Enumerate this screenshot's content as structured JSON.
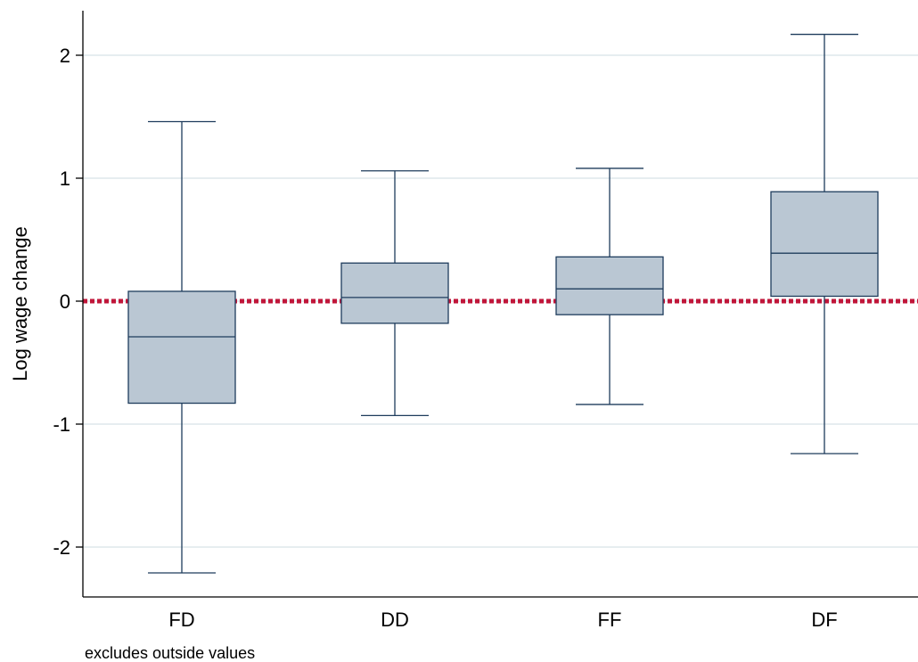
{
  "chart_data": {
    "type": "box",
    "ylabel": "Log wage change",
    "note": "excludes outside values",
    "ylim": [
      -2.4,
      2.38
    ],
    "yticks": [
      -2,
      -1,
      0,
      1,
      2
    ],
    "ytick_labels": [
      "-2",
      "-1",
      "0",
      "1",
      "2"
    ],
    "grid": true,
    "reference_line": {
      "y": 0,
      "style": "dotted",
      "color": "#c0163a"
    },
    "colors": {
      "box_fill": "#bac7d3",
      "box_stroke": "#1e3c5c",
      "grid": "#dde7ec",
      "axis": "#000000"
    },
    "categories": [
      "FD",
      "DD",
      "FF",
      "DF"
    ],
    "boxes": [
      {
        "label": "FD",
        "whisker_low": -2.21,
        "q1": -0.83,
        "median": -0.29,
        "q3": 0.08,
        "whisker_high": 1.46
      },
      {
        "label": "DD",
        "whisker_low": -0.93,
        "q1": -0.18,
        "median": 0.03,
        "q3": 0.31,
        "whisker_high": 1.06
      },
      {
        "label": "FF",
        "whisker_low": -0.84,
        "q1": -0.11,
        "median": 0.1,
        "q3": 0.36,
        "whisker_high": 1.08
      },
      {
        "label": "DF",
        "whisker_low": -1.24,
        "q1": 0.04,
        "median": 0.39,
        "q3": 0.89,
        "whisker_high": 2.17
      }
    ]
  }
}
